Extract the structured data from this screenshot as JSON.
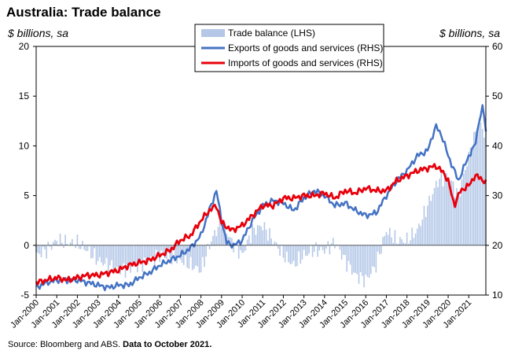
{
  "chart_data": {
    "type": "bar+line",
    "title": "Australia: Trade balance",
    "ylabel_left": "$ billions, sa",
    "ylabel_right": "$ billions, sa",
    "ylim_left": [
      -5,
      20
    ],
    "yticks_left": [
      -5,
      0,
      5,
      10,
      15,
      20
    ],
    "ylim_right": [
      10,
      60
    ],
    "yticks_right": [
      10,
      20,
      30,
      40,
      50,
      60
    ],
    "x_range": [
      2000.0,
      2021.83
    ],
    "x_tick_labels": [
      "Jan-2000",
      "Jan-2001",
      "Jan-2002",
      "Jan-2003",
      "Jan-2004",
      "Jan-2005",
      "Jan-2006",
      "Jan-2007",
      "Jan-2008",
      "Jan-2009",
      "Jan-2010",
      "Jan-2011",
      "Jan-2012",
      "Jan-2013",
      "Jan-2014",
      "Jan-2015",
      "Jan-2016",
      "Jan-2017",
      "Jan-2018",
      "Jan-2019",
      "Jan-2020",
      "Jan-2021"
    ],
    "legend": {
      "placement": "top-center",
      "entries": [
        "Trade balance (LHS)",
        "Exports of goods and services (RHS)",
        "Imports of goods and services (RHS)"
      ]
    },
    "colors": {
      "balance": "#b4c7e7",
      "exports": "#4472c4",
      "imports": "#e8000b"
    },
    "balance_anchors": {
      "x": [
        2000.0,
        2000.5,
        2001.0,
        2001.5,
        2002.0,
        2002.5,
        2003.0,
        2003.5,
        2004.0,
        2004.5,
        2005.0,
        2005.5,
        2006.0,
        2006.5,
        2007.0,
        2007.5,
        2008.0,
        2008.5,
        2009.0,
        2009.5,
        2010.0,
        2010.5,
        2011.0,
        2011.5,
        2012.0,
        2012.5,
        2013.0,
        2013.5,
        2014.0,
        2014.5,
        2015.0,
        2015.5,
        2016.0,
        2016.5,
        2017.0,
        2017.5,
        2018.0,
        2018.5,
        2019.0,
        2019.5,
        2020.0,
        2020.5,
        2021.0,
        2021.5,
        2021.83
      ],
      "y": [
        -1.0,
        -0.5,
        0.5,
        0.3,
        0.2,
        -0.5,
        -1.5,
        -2.0,
        -2.5,
        -2.3,
        -2.0,
        -1.5,
        -1.0,
        -1.2,
        -1.5,
        -2.0,
        -2.5,
        0.5,
        2.5,
        0.3,
        -1.0,
        1.5,
        2.0,
        0.5,
        -1.0,
        -2.0,
        -1.0,
        -0.5,
        -0.5,
        0.3,
        -1.5,
        -3.0,
        -3.5,
        -2.0,
        1.5,
        0.5,
        0.5,
        1.5,
        4.0,
        6.5,
        7.0,
        5.0,
        9.0,
        12.5,
        11.0
      ]
    },
    "exports": {
      "x": [
        2000.0,
        2000.5,
        2001.0,
        2001.5,
        2002.0,
        2002.5,
        2003.0,
        2003.5,
        2004.0,
        2004.5,
        2005.0,
        2005.5,
        2006.0,
        2006.5,
        2007.0,
        2007.5,
        2008.0,
        2008.4,
        2008.75,
        2009.0,
        2009.25,
        2009.6,
        2010.0,
        2010.5,
        2011.0,
        2011.5,
        2012.0,
        2012.5,
        2013.0,
        2013.5,
        2014.0,
        2014.5,
        2015.0,
        2015.5,
        2016.0,
        2016.5,
        2017.0,
        2017.5,
        2018.0,
        2018.5,
        2019.0,
        2019.4,
        2019.7,
        2020.0,
        2020.3,
        2020.5,
        2020.8,
        2021.0,
        2021.3,
        2021.5,
        2021.7,
        2021.83
      ],
      "y": [
        11.5,
        12.5,
        13.0,
        13.0,
        13.0,
        12.5,
        12.0,
        11.5,
        12.0,
        12.0,
        13.5,
        14.5,
        16.0,
        17.0,
        18.0,
        19.5,
        22.0,
        27.0,
        31.0,
        25.0,
        20.5,
        20.0,
        21.0,
        25.0,
        28.0,
        29.0,
        28.5,
        27.0,
        29.5,
        31.0,
        30.0,
        28.0,
        28.5,
        27.0,
        26.0,
        26.5,
        30.0,
        33.0,
        35.0,
        38.0,
        39.0,
        44.0,
        42.0,
        38.0,
        35.0,
        33.0,
        36.0,
        38.0,
        40.0,
        45.0,
        48.0,
        43.0
      ]
    },
    "imports": {
      "x": [
        2000.0,
        2000.5,
        2001.0,
        2001.5,
        2002.0,
        2002.5,
        2003.0,
        2003.5,
        2004.0,
        2004.5,
        2005.0,
        2005.5,
        2006.0,
        2006.5,
        2007.0,
        2007.5,
        2008.0,
        2008.4,
        2008.75,
        2009.0,
        2009.5,
        2010.0,
        2010.5,
        2011.0,
        2011.5,
        2012.0,
        2012.5,
        2013.0,
        2013.5,
        2014.0,
        2014.5,
        2015.0,
        2015.5,
        2016.0,
        2016.5,
        2017.0,
        2017.5,
        2018.0,
        2018.5,
        2019.0,
        2019.4,
        2019.8,
        2020.0,
        2020.3,
        2020.6,
        2021.0,
        2021.3,
        2021.6,
        2021.83
      ],
      "y": [
        12.5,
        13.0,
        13.5,
        13.0,
        13.5,
        14.0,
        14.0,
        14.5,
        15.0,
        16.0,
        16.5,
        17.0,
        18.0,
        19.0,
        21.0,
        22.0,
        25.0,
        27.0,
        28.0,
        24.5,
        23.0,
        24.0,
        26.0,
        28.0,
        28.0,
        29.5,
        29.5,
        30.0,
        30.0,
        30.5,
        29.5,
        31.0,
        30.5,
        31.5,
        31.0,
        31.0,
        33.0,
        34.0,
        35.0,
        35.5,
        36.0,
        34.5,
        33.0,
        28.0,
        31.0,
        32.0,
        34.0,
        33.5,
        32.5
      ]
    }
  },
  "source_prefix": "Source: Bloomberg and ABS.",
  "source_note": "Data to October 2021."
}
